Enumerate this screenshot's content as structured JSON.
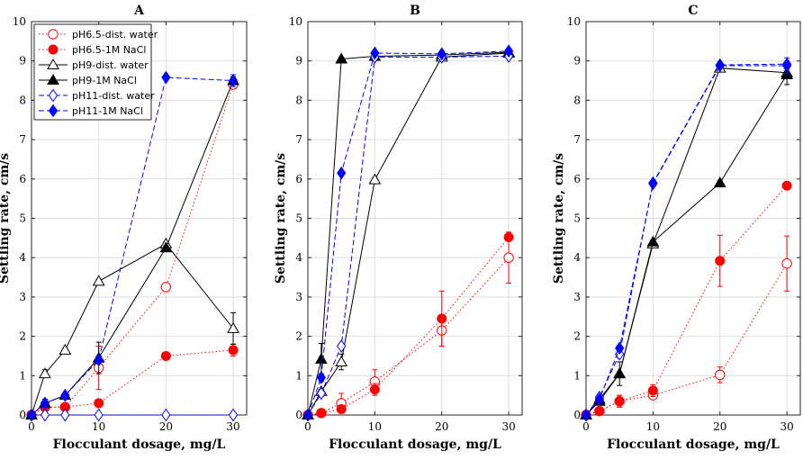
{
  "chart_data": {
    "type": "line",
    "xlabel": "Flocculant dosage, mg/L",
    "ylabel": "Settling rate, cm/s",
    "xlim": [
      0,
      32
    ],
    "ylim": [
      0,
      10
    ],
    "xticks": [
      0,
      10,
      20,
      30
    ],
    "yticks": [
      0,
      1,
      2,
      3,
      4,
      5,
      6,
      7,
      8,
      9,
      10
    ],
    "grid": true,
    "legend_position": "top-left of panel A",
    "series_styles": [
      {
        "name": "pH6.5-dist. water",
        "color": "#ff0000",
        "marker": "circle-open",
        "dash": "dotted"
      },
      {
        "name": "pH6.5-1M NaCl",
        "color": "#ff0000",
        "marker": "circle-filled",
        "dash": "dotted"
      },
      {
        "name": "pH9-dist. water",
        "color": "#000000",
        "marker": "triangle-open",
        "dash": "solid"
      },
      {
        "name": "pH9-1M NaCl",
        "color": "#000000",
        "marker": "triangle-filled",
        "dash": "solid"
      },
      {
        "name": "pH11-dist. water",
        "color": "#0000ff",
        "marker": "diamond-open",
        "dash": "dashed"
      },
      {
        "name": "pH11-1M NaCl",
        "color": "#0000ff",
        "marker": "diamond-filled",
        "dash": "dashed"
      }
    ],
    "panels": [
      {
        "title": "A",
        "series": [
          {
            "name": "pH6.5-dist. water",
            "x": [
              0,
              2,
              5,
              10,
              20,
              30
            ],
            "y": [
              0,
              0.2,
              0.2,
              1.2,
              3.25,
              8.4
            ],
            "err": [
              0,
              0,
              0,
              0.55,
              0.05,
              0.05
            ]
          },
          {
            "name": "pH6.5-1M NaCl",
            "x": [
              0,
              2,
              5,
              10,
              20,
              30
            ],
            "y": [
              0,
              0.2,
              0.2,
              0.3,
              1.5,
              1.65
            ],
            "err": [
              0,
              0,
              0,
              0,
              0,
              0.15
            ]
          },
          {
            "name": "pH9-dist. water",
            "x": [
              0,
              2,
              5,
              10,
              20,
              30
            ],
            "y": [
              0,
              1.05,
              1.65,
              3.4,
              4.35,
              2.2
            ],
            "err": [
              0,
              0.1,
              0.05,
              0.05,
              0.05,
              0.4
            ]
          },
          {
            "name": "pH9-1M NaCl",
            "x": [
              0,
              2,
              5,
              10,
              20,
              30
            ],
            "y": [
              0,
              0.3,
              0.5,
              1.45,
              4.25,
              8.5
            ],
            "err": [
              0,
              0.1,
              0.05,
              0.4,
              0.05,
              0.1
            ]
          },
          {
            "name": "pH11-dist. water",
            "x": [
              0,
              2,
              5,
              10,
              20,
              30
            ],
            "y": [
              0,
              0,
              0,
              0,
              0,
              0
            ],
            "err": [
              0,
              0,
              0,
              0,
              0,
              0
            ]
          },
          {
            "name": "pH11-1M NaCl",
            "x": [
              0,
              2,
              5,
              10,
              20,
              30
            ],
            "y": [
              0,
              0.3,
              0.5,
              1.4,
              8.58,
              8.5
            ],
            "err": [
              0,
              0.1,
              0.05,
              0.1,
              0.05,
              0.15
            ]
          }
        ]
      },
      {
        "title": "B",
        "series": [
          {
            "name": "pH6.5-dist. water",
            "x": [
              0,
              2,
              5,
              10,
              20,
              30
            ],
            "y": [
              0,
              0.05,
              0.3,
              0.85,
              2.15,
              4.0
            ],
            "err": [
              0,
              0,
              0.25,
              0.3,
              0.4,
              0.65
            ]
          },
          {
            "name": "pH6.5-1M NaCl",
            "x": [
              0,
              2,
              5,
              10,
              20,
              30
            ],
            "y": [
              0,
              0.05,
              0.15,
              0.65,
              2.45,
              4.52
            ],
            "err": [
              0,
              0,
              0,
              0.15,
              0.7,
              0.05
            ]
          },
          {
            "name": "pH9-dist. water",
            "x": [
              0,
              2,
              5,
              10,
              20,
              30
            ],
            "y": [
              0,
              0.6,
              1.35,
              5.98,
              9.1,
              9.2
            ],
            "err": [
              0,
              0.05,
              0.2,
              0.05,
              0.05,
              0.05
            ]
          },
          {
            "name": "pH9-1M NaCl",
            "x": [
              0,
              2,
              5,
              10,
              20,
              30
            ],
            "y": [
              0,
              1.42,
              9.05,
              9.12,
              9.15,
              9.22
            ],
            "err": [
              0,
              0.4,
              0.05,
              0.05,
              0.05,
              0.05
            ]
          },
          {
            "name": "pH11-dist. water",
            "x": [
              0,
              2,
              5,
              10,
              20,
              30
            ],
            "y": [
              0,
              0.55,
              1.75,
              9.1,
              9.1,
              9.12
            ],
            "err": [
              0,
              0.05,
              0.05,
              0.05,
              0.05,
              0.05
            ]
          },
          {
            "name": "pH11-1M NaCl",
            "x": [
              0,
              2,
              5,
              10,
              20,
              30
            ],
            "y": [
              0,
              0.95,
              6.15,
              9.2,
              9.18,
              9.25
            ],
            "err": [
              0,
              0.1,
              0.05,
              0.05,
              0.05,
              0.05
            ]
          }
        ]
      },
      {
        "title": "C",
        "series": [
          {
            "name": "pH6.5-dist. water",
            "x": [
              0,
              2,
              5,
              10,
              20,
              30
            ],
            "y": [
              0,
              0.1,
              0.35,
              0.5,
              1.02,
              3.85
            ],
            "err": [
              0,
              0,
              0.15,
              0.1,
              0.2,
              0.7
            ]
          },
          {
            "name": "pH6.5-1M NaCl",
            "x": [
              0,
              2,
              5,
              10,
              20,
              30
            ],
            "y": [
              0,
              0.1,
              0.35,
              0.62,
              3.92,
              5.83
            ],
            "err": [
              0,
              0,
              0.15,
              0.15,
              0.65,
              0.05
            ]
          },
          {
            "name": "pH9-dist. water",
            "x": [
              0,
              2,
              5,
              10,
              20,
              30
            ],
            "y": [
              0,
              0.4,
              1.05,
              4.35,
              8.82,
              8.7
            ],
            "err": [
              0,
              0.05,
              0.05,
              0.05,
              0.05,
              0.1
            ]
          },
          {
            "name": "pH9-1M NaCl",
            "x": [
              0,
              2,
              5,
              10,
              20,
              30
            ],
            "y": [
              0,
              0.35,
              1.05,
              4.4,
              5.9,
              8.65
            ],
            "err": [
              0,
              0.05,
              0.3,
              0.05,
              0.05,
              0.25
            ]
          },
          {
            "name": "pH11-dist. water",
            "x": [
              0,
              2,
              5,
              10,
              20,
              30
            ],
            "y": [
              0,
              0.45,
              1.55,
              5.9,
              8.9,
              8.92
            ],
            "err": [
              0,
              0.05,
              0.05,
              0.05,
              0.05,
              0.05
            ]
          },
          {
            "name": "pH11-1M NaCl",
            "x": [
              0,
              2,
              5,
              10,
              20,
              30
            ],
            "y": [
              0,
              0.4,
              1.7,
              5.88,
              8.88,
              8.88
            ],
            "err": [
              0,
              0.05,
              0.05,
              0.05,
              0.05,
              0.2
            ]
          }
        ]
      }
    ]
  }
}
